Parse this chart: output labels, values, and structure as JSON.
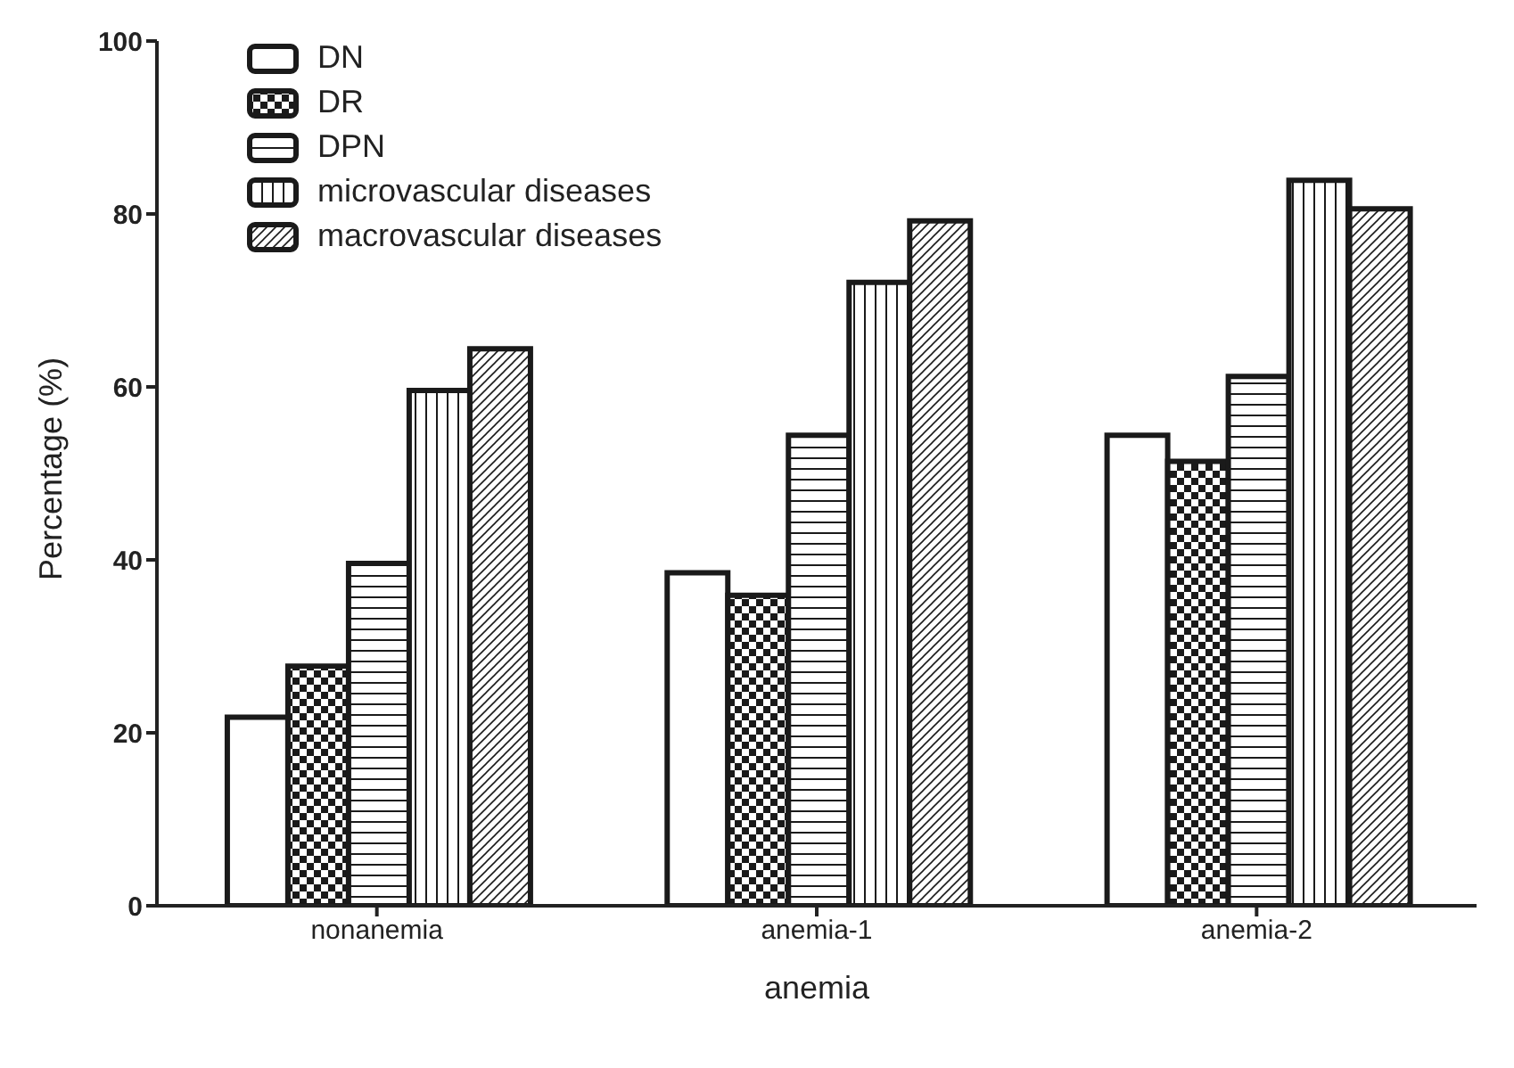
{
  "chart_data": {
    "type": "bar",
    "xlabel": "anemia",
    "ylabel": "Percentage (%)",
    "categories": [
      "nonanemia",
      "anemia-1",
      "anemia-2"
    ],
    "series": [
      {
        "name": "DN",
        "color": "#1a1a1a",
        "values": [
          21.8,
          38.5,
          54.4
        ]
      },
      {
        "name": "DR",
        "color": "#1a1a1a",
        "values": [
          27.7,
          35.9,
          51.4
        ]
      },
      {
        "name": "DPN",
        "color": "#1a1a1a",
        "values": [
          39.6,
          54.4,
          61.2
        ]
      },
      {
        "name": "microvascular diseases",
        "color": "#1a1a1a",
        "values": [
          59.6,
          72.1,
          83.9
        ]
      },
      {
        "name": "macrovascular diseases",
        "color": "#1a1a1a",
        "values": [
          64.4,
          79.2,
          80.6
        ]
      }
    ],
    "ylim": [
      0,
      100
    ],
    "yticks": [
      0,
      20,
      40,
      60,
      80,
      100
    ],
    "grid": false,
    "legend": "top left"
  }
}
